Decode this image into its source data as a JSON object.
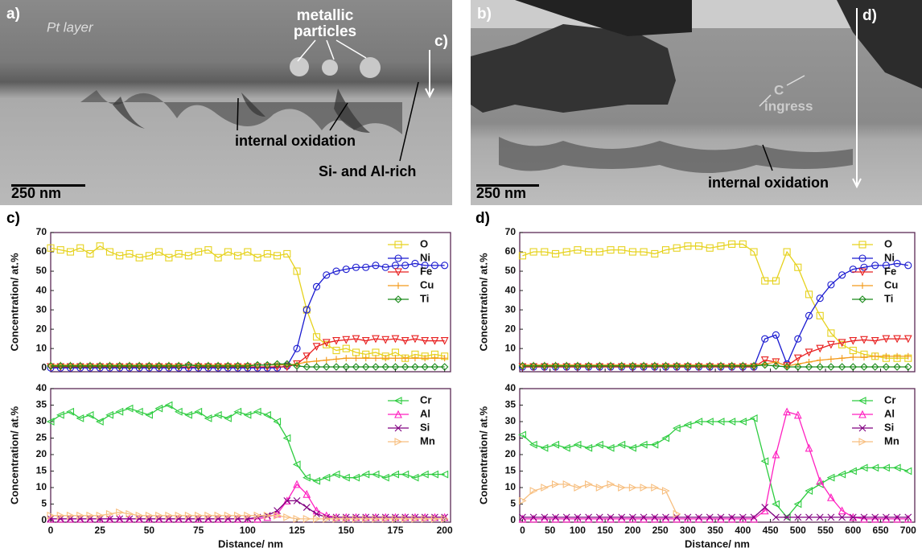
{
  "images": [
    {
      "panel": "a)",
      "scale_bar": "250 nm",
      "pt": "Pt layer",
      "particles": [
        "metallic",
        "particles"
      ],
      "arrow_label": "c)",
      "oxidation": "internal oxidation",
      "rich": "Si- and Al-rich"
    },
    {
      "panel": "b)",
      "scale_bar": "250 nm",
      "arrow_label": "d)",
      "ingress": [
        "C",
        "ingress"
      ],
      "oxidation": "internal oxidation"
    }
  ],
  "chart_data": [
    {
      "type": "line",
      "panel": "c)",
      "ylabel": "Concentration/ at.%",
      "x": [
        0,
        5,
        10,
        15,
        20,
        25,
        30,
        35,
        40,
        45,
        50,
        55,
        60,
        65,
        70,
        75,
        80,
        85,
        90,
        95,
        100,
        105,
        110,
        115,
        120,
        125,
        130,
        135,
        140,
        145,
        150,
        155,
        160,
        165,
        170,
        175,
        180,
        185,
        190,
        195,
        200
      ],
      "xlim": [
        0,
        203
      ],
      "xticks": [
        0,
        25,
        50,
        75,
        100,
        125,
        150,
        175,
        200
      ],
      "ylim": [
        -2,
        70
      ],
      "yticks": [
        0,
        10,
        20,
        30,
        40,
        50,
        60,
        70
      ],
      "series": [
        {
          "name": "O",
          "color": "#e6d21e",
          "marker": "square",
          "values": [
            62,
            61,
            60,
            62,
            59,
            63,
            60,
            58,
            59,
            57,
            58,
            60,
            57,
            59,
            58,
            60,
            61,
            57,
            60,
            58,
            60,
            57,
            59,
            58,
            59,
            50,
            30,
            16,
            12,
            9,
            10,
            8,
            7,
            8,
            6,
            8,
            5,
            7,
            6,
            7,
            6
          ]
        },
        {
          "name": "Ni",
          "color": "#1a1ad0",
          "marker": "circle",
          "values": [
            0,
            0,
            0,
            0,
            0,
            0,
            0,
            0,
            0,
            0,
            0,
            0,
            0,
            0,
            0,
            0,
            0,
            0,
            0,
            0,
            0,
            0,
            0,
            0,
            1,
            10,
            30,
            42,
            48,
            50,
            51,
            52,
            52,
            53,
            52,
            53,
            53,
            54,
            53,
            53,
            53
          ]
        },
        {
          "name": "Fe",
          "color": "#e82020",
          "marker": "tri-down",
          "values": [
            0.5,
            0.5,
            0.5,
            0.5,
            0.5,
            0.5,
            0.5,
            0.5,
            0.5,
            0.5,
            0.5,
            0.5,
            0.5,
            0.5,
            0.5,
            0.5,
            0.5,
            0.5,
            0.5,
            0.5,
            0.5,
            0.5,
            0.5,
            0.5,
            0.5,
            2,
            6,
            11,
            13,
            14,
            14.5,
            15,
            14,
            15,
            14.5,
            15,
            14,
            15,
            14,
            14,
            14
          ]
        },
        {
          "name": "Cu",
          "color": "#f39a1a",
          "marker": "plus",
          "values": [
            1.5,
            1.5,
            1.5,
            1.5,
            1.5,
            1.5,
            1.5,
            1.5,
            1.5,
            1.5,
            1.5,
            1.5,
            1.5,
            1.5,
            1.5,
            1.5,
            1.5,
            1.5,
            1.5,
            1.5,
            1.5,
            1.5,
            1.5,
            1.5,
            1.5,
            2,
            3,
            3.5,
            4,
            4.5,
            5,
            5,
            5,
            5,
            5,
            5,
            5,
            5,
            5,
            5,
            5
          ]
        },
        {
          "name": "Ti",
          "color": "#1a8a1a",
          "marker": "diamond",
          "values": [
            1,
            1,
            1,
            1,
            1,
            1,
            1,
            1,
            1,
            1,
            1,
            1,
            1,
            1,
            1.5,
            1,
            1,
            1,
            1,
            1,
            1,
            1.5,
            1.5,
            2,
            2,
            1,
            0.5,
            0.5,
            0.5,
            0.5,
            0.5,
            0.5,
            0.5,
            0.5,
            0.5,
            0.5,
            0.5,
            0.5,
            0.5,
            0.5,
            0.5
          ]
        }
      ]
    },
    {
      "type": "line",
      "ylabel": "Concentration/ at.%",
      "xlabel": "Distance/ nm",
      "x": [
        0,
        5,
        10,
        15,
        20,
        25,
        30,
        35,
        40,
        45,
        50,
        55,
        60,
        65,
        70,
        75,
        80,
        85,
        90,
        95,
        100,
        105,
        110,
        115,
        120,
        125,
        130,
        135,
        140,
        145,
        150,
        155,
        160,
        165,
        170,
        175,
        180,
        185,
        190,
        195,
        200
      ],
      "xlim": [
        0,
        203
      ],
      "xticks": [
        0,
        25,
        50,
        75,
        100,
        125,
        150,
        175,
        200
      ],
      "ylim": [
        -0.5,
        40
      ],
      "yticks": [
        0,
        5,
        10,
        15,
        20,
        25,
        30,
        35,
        40
      ],
      "series": [
        {
          "name": "Cr",
          "color": "#2ecc40",
          "marker": "tri-left",
          "values": [
            30,
            32,
            33,
            31,
            32,
            30,
            32,
            33,
            34,
            33,
            32,
            34,
            35,
            33,
            32,
            33,
            31,
            32,
            31,
            33,
            32,
            33,
            32,
            30,
            25,
            17,
            13,
            12,
            13,
            14,
            13,
            13,
            14,
            14,
            13,
            14,
            14,
            13,
            14,
            14,
            14
          ]
        },
        {
          "name": "Al",
          "color": "#ff20c0",
          "marker": "tri-up",
          "values": [
            0.5,
            0.5,
            0.5,
            0.5,
            0.5,
            0.5,
            0.5,
            0.5,
            0.5,
            0.5,
            0.5,
            0.5,
            0.5,
            0.5,
            0.5,
            0.5,
            0.5,
            0.5,
            0.5,
            0.5,
            0.5,
            0.5,
            1,
            2,
            6,
            11,
            8,
            3,
            1.5,
            1,
            1,
            1,
            1,
            1,
            1,
            1,
            1,
            1,
            1,
            1,
            1
          ]
        },
        {
          "name": "Si",
          "color": "#800080",
          "marker": "x",
          "values": [
            0.5,
            0.5,
            0.5,
            0.5,
            0.5,
            0.5,
            0.5,
            0.5,
            0.5,
            0.5,
            0.5,
            0.5,
            0.5,
            0.5,
            0.5,
            0.5,
            0.5,
            0.5,
            0.5,
            0.5,
            0.5,
            1,
            1.5,
            3,
            6,
            6,
            4,
            2,
            1,
            1,
            1,
            1,
            1,
            1,
            1,
            1,
            1,
            1,
            1,
            1,
            1
          ]
        },
        {
          "name": "Mn",
          "color": "#f7bf80",
          "marker": "tri-right",
          "values": [
            1.5,
            1.5,
            1.5,
            1.5,
            1.5,
            1.5,
            2,
            2.5,
            2,
            1.5,
            1.5,
            1.5,
            1.5,
            1.5,
            1.5,
            1.5,
            1.5,
            1.5,
            1.5,
            1.5,
            1.5,
            1.5,
            1.5,
            1.5,
            1,
            0.5,
            0.5,
            0.5,
            0.5,
            0.5,
            0.5,
            0.5,
            0.5,
            0.5,
            0.5,
            0.5,
            0.5,
            0.5,
            0.5,
            0.5,
            0.5
          ]
        }
      ]
    },
    {
      "type": "line",
      "panel": "d)",
      "ylabel": "Concentration/ at.%",
      "x": [
        0,
        20,
        40,
        60,
        80,
        100,
        120,
        140,
        160,
        180,
        200,
        220,
        240,
        260,
        280,
        300,
        320,
        340,
        360,
        380,
        400,
        420,
        440,
        460,
        480,
        500,
        520,
        540,
        560,
        580,
        600,
        620,
        640,
        660,
        680,
        700
      ],
      "xlim": [
        -5,
        712
      ],
      "xticks": [
        0,
        50,
        100,
        150,
        200,
        250,
        300,
        350,
        400,
        450,
        500,
        550,
        600,
        650,
        700
      ],
      "ylim": [
        -2,
        70
      ],
      "yticks": [
        0,
        10,
        20,
        30,
        40,
        50,
        60,
        70
      ],
      "series": [
        {
          "name": "O",
          "color": "#e6d21e",
          "marker": "square",
          "values": [
            58,
            60,
            60,
            59,
            60,
            61,
            60,
            60,
            61,
            61,
            60,
            60,
            59,
            61,
            62,
            63,
            63,
            62,
            63,
            64,
            64,
            60,
            45,
            45,
            60,
            52,
            38,
            27,
            18,
            12,
            9,
            7,
            6,
            5,
            5,
            5
          ]
        },
        {
          "name": "Ni",
          "color": "#1a1ad0",
          "marker": "circle",
          "values": [
            0.5,
            0.5,
            0.5,
            0.5,
            0.5,
            0.5,
            0.5,
            0.5,
            0.5,
            0.5,
            0.5,
            0.5,
            0.5,
            0.5,
            0.5,
            0.5,
            0.5,
            0.5,
            0.5,
            0.5,
            0.5,
            0.5,
            15,
            17,
            2,
            15,
            27,
            36,
            43,
            48,
            51,
            52,
            53,
            53,
            54,
            53
          ]
        },
        {
          "name": "Fe",
          "color": "#e82020",
          "marker": "tri-down",
          "values": [
            0.5,
            0.5,
            0.5,
            0.5,
            0.5,
            0.5,
            0.5,
            0.5,
            0.5,
            0.5,
            0.5,
            0.5,
            0.5,
            0.5,
            0.5,
            0.5,
            0.5,
            0.5,
            0.5,
            0.5,
            0.5,
            0.5,
            4,
            3,
            1,
            5,
            8,
            10,
            12,
            13,
            14,
            14.5,
            14,
            15,
            15,
            15
          ]
        },
        {
          "name": "Cu",
          "color": "#f39a1a",
          "marker": "plus",
          "values": [
            1.5,
            1.5,
            1.5,
            1.5,
            1.5,
            1.5,
            1.5,
            1.5,
            1.5,
            1.5,
            1.5,
            1.5,
            1.5,
            1.5,
            1.5,
            1.5,
            1.5,
            1.5,
            1.5,
            1.5,
            1.5,
            1.5,
            2,
            3,
            1,
            2,
            3,
            4,
            4.5,
            5,
            5.5,
            5.5,
            6,
            6,
            6,
            6
          ]
        },
        {
          "name": "Ti",
          "color": "#1a8a1a",
          "marker": "diamond",
          "values": [
            1,
            1,
            1,
            1,
            1,
            1,
            1,
            1,
            1,
            1,
            1,
            1,
            1,
            1,
            1,
            1,
            1,
            1,
            1,
            1,
            1,
            1,
            1.5,
            1,
            0.5,
            0.5,
            0.5,
            0.5,
            0.5,
            0.5,
            0.5,
            0.5,
            0.5,
            0.5,
            0.5,
            0.5
          ]
        }
      ]
    },
    {
      "type": "line",
      "ylabel": "Concentration/ at.%",
      "xlabel": "Distance/ nm",
      "x": [
        0,
        20,
        40,
        60,
        80,
        100,
        120,
        140,
        160,
        180,
        200,
        220,
        240,
        260,
        280,
        300,
        320,
        340,
        360,
        380,
        400,
        420,
        440,
        460,
        480,
        500,
        520,
        540,
        560,
        580,
        600,
        620,
        640,
        660,
        680,
        700
      ],
      "xlim": [
        -5,
        712
      ],
      "xticks": [
        0,
        50,
        100,
        150,
        200,
        250,
        300,
        350,
        400,
        450,
        500,
        550,
        600,
        650,
        700
      ],
      "ylim": [
        -0.5,
        40
      ],
      "yticks": [
        0,
        5,
        10,
        15,
        20,
        25,
        30,
        35,
        40
      ],
      "series": [
        {
          "name": "Cr",
          "color": "#2ecc40",
          "marker": "tri-left",
          "values": [
            26,
            23,
            22,
            23,
            22,
            23,
            22,
            23,
            22,
            23,
            22,
            23,
            23,
            25,
            28,
            29,
            30,
            30,
            30,
            30,
            30,
            31,
            18,
            5,
            1,
            5,
            9,
            11,
            13,
            14,
            15,
            16,
            16,
            16,
            16,
            15
          ]
        },
        {
          "name": "Al",
          "color": "#ff20c0",
          "marker": "tri-up",
          "values": [
            0.5,
            0.5,
            0.5,
            0.5,
            0.5,
            0.5,
            0.5,
            0.5,
            0.5,
            0.5,
            0.5,
            0.5,
            0.5,
            0.5,
            0.5,
            0.5,
            0.5,
            0.5,
            0.5,
            0.5,
            0.5,
            0.5,
            3,
            20,
            33,
            32,
            22,
            12,
            7,
            3,
            1,
            0.5,
            0.5,
            0.5,
            0.5,
            0.5
          ]
        },
        {
          "name": "Si",
          "color": "#800080",
          "marker": "x",
          "values": [
            1,
            1,
            1,
            1,
            1,
            1,
            1,
            1,
            1,
            1,
            1,
            1,
            1,
            1,
            1,
            1,
            1,
            1,
            1,
            1,
            1,
            1,
            4,
            1,
            1,
            1,
            1,
            1,
            1,
            1,
            1,
            1,
            1,
            1,
            1,
            1
          ]
        },
        {
          "name": "Mn",
          "color": "#f7bf80",
          "marker": "tri-right",
          "values": [
            6,
            9,
            10,
            11,
            11,
            10,
            11,
            10,
            11,
            10,
            10,
            10,
            10,
            9,
            2,
            null,
            null,
            null,
            null,
            null,
            null,
            null,
            null,
            null,
            null,
            null,
            null,
            null,
            null,
            null,
            null,
            null,
            null,
            null,
            null,
            null
          ]
        }
      ]
    }
  ]
}
